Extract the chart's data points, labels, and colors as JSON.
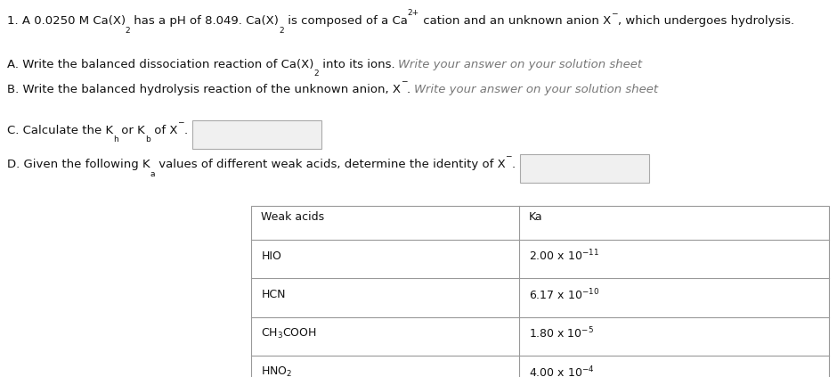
{
  "bg_color": "#ffffff",
  "text_color": "#111111",
  "italic_color": "#666666",
  "line1_part1": "1. A 0.0250 M Ca(X)",
  "line1_sub2": "2",
  "line1_part2": " has a pH of 8.049. Ca(X)",
  "line1_sub2b": "2",
  "line1_part3": " is composed of a Ca",
  "line1_sup": "2+",
  "line1_part4": " cation and an unknown anion X",
  "line1_sup2": "−",
  "line1_part5": ", which undergoes hydrolysis.",
  "lineA_normal": "A. Write the balanced dissociation reaction of Ca(X)",
  "lineA_sub": "2",
  "lineA_normal2": " into its ions. ",
  "lineA_italic": "Write your answer on your solution sheet",
  "lineB_normal": "B. Write the balanced hydrolysis reaction of the unknown anion, X",
  "lineB_sup": "−",
  "lineB_normal2": ". ",
  "lineB_italic": "Write your answer on your solution sheet",
  "lineC_normal1": "C. Calculate the K",
  "lineC_sub1": "h",
  "lineC_normal2": " or K",
  "lineC_sub2": "b",
  "lineC_normal3": " of X",
  "lineC_sup": "−",
  "lineC_normal4": ".",
  "lineD_normal1": "D. Given the following K",
  "lineD_sub": "a",
  "lineD_normal2": " values of different weak acids, determine the identity of X",
  "lineD_sup": "−",
  "lineD_normal3": ".",
  "table_headers": [
    "Weak acids",
    "Ka"
  ],
  "table_acids": [
    "HIO",
    "HCN",
    "CH$_3$COOH",
    "HNO$_2$"
  ],
  "table_ka": [
    "2.00 x 10$^{-11}$",
    "6.17 x 10$^{-10}$",
    "1.80 x 10$^{-5}$",
    "4.00 x 10$^{-4}$"
  ],
  "fs_main": 9.5,
  "fs_small": 9.0,
  "fs_super": 6.5,
  "fs_sub": 6.5
}
